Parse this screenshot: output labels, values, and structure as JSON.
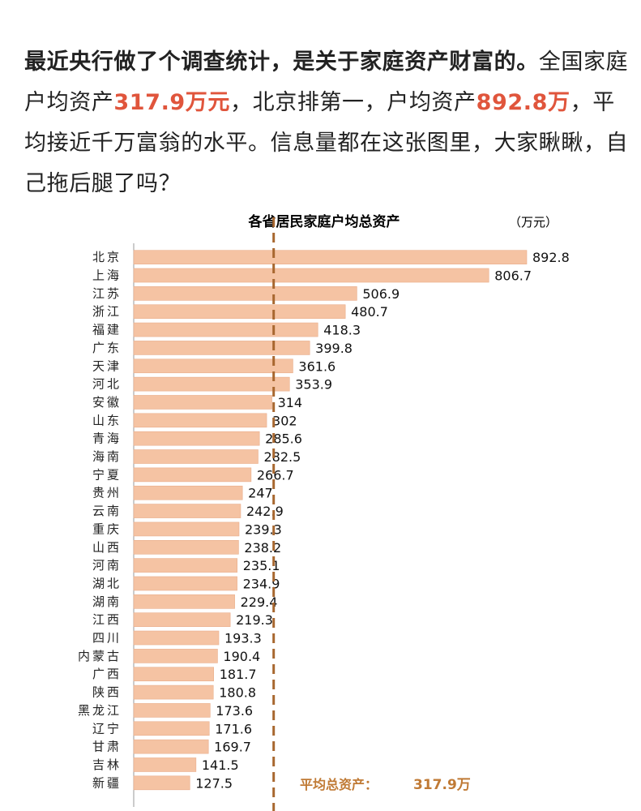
{
  "post": {
    "segments": [
      {
        "text": "最近央行做了个调查统计，是关于家庭资产财富的。",
        "style": "bold"
      },
      {
        "text": "全国家庭户均资产",
        "style": "normal"
      },
      {
        "text": "317.9万元",
        "style": "highlight"
      },
      {
        "text": "，北京排第一，户均资产",
        "style": "normal"
      },
      {
        "text": "892.8万",
        "style": "highlight"
      },
      {
        "text": "，平均接近千万富翁的水平。信息量都在这张图里，大家瞅瞅，自己拖后腿了吗？",
        "style": "normal"
      }
    ],
    "highlight_color": "#e0553c"
  },
  "chart_data": {
    "type": "hbar",
    "title": "各省居民家庭户均总资产",
    "unit": "（万元）",
    "categories": [
      "北京",
      "上海",
      "江苏",
      "浙江",
      "福建",
      "广东",
      "天津",
      "河北",
      "安徽",
      "山东",
      "青海",
      "海南",
      "宁夏",
      "贵州",
      "云南",
      "重庆",
      "山西",
      "河南",
      "湖北",
      "湖南",
      "江西",
      "四川",
      "内蒙古",
      "广西",
      "陕西",
      "黑龙江",
      "辽宁",
      "甘肃",
      "吉林",
      "新疆"
    ],
    "values": [
      892.8,
      806.7,
      506.9,
      480.7,
      418.3,
      399.8,
      361.6,
      353.9,
      314,
      302,
      285.6,
      282.5,
      266.7,
      247,
      242.9,
      239.3,
      238.2,
      235.1,
      234.9,
      229.4,
      219.3,
      193.3,
      190.4,
      181.7,
      180.8,
      173.6,
      171.6,
      169.7,
      141.5,
      127.5
    ],
    "color": "#f5c3a3",
    "average": {
      "value": 317.9,
      "label": "317.9万"
    },
    "average_annotation": "平均总资产：",
    "average_color": "#a8672f"
  }
}
